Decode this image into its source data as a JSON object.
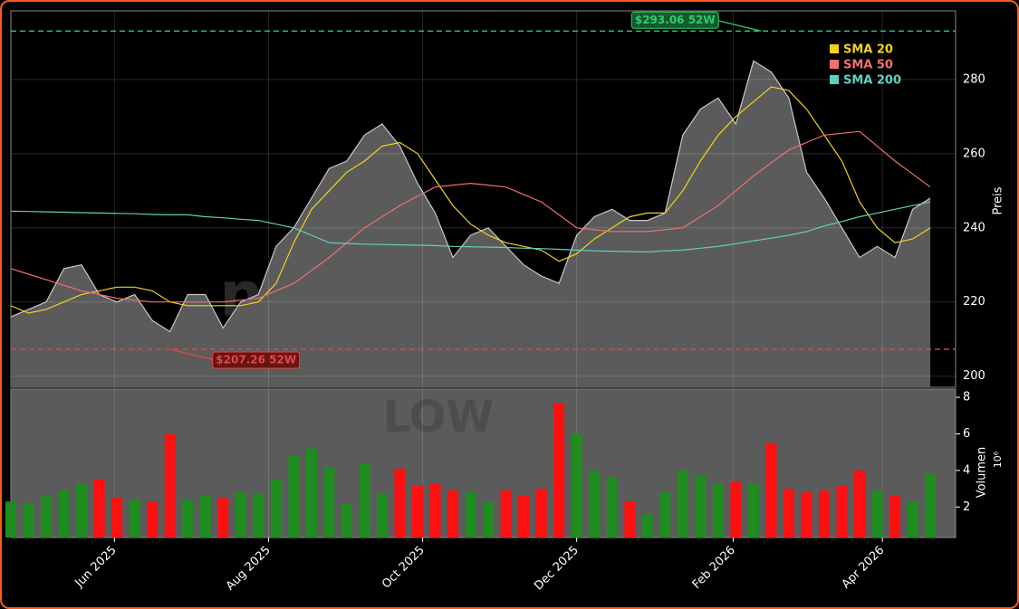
{
  "chart_data": [
    {
      "type": "line",
      "symbol": "LOW",
      "watermark": "newsroom.com",
      "ylabel": "Preis",
      "x": [
        "2025-04-21",
        "2025-04-28",
        "2025-05-05",
        "2025-05-12",
        "2025-05-19",
        "2025-05-26",
        "2025-06-02",
        "2025-06-09",
        "2025-06-16",
        "2025-06-23",
        "2025-06-30",
        "2025-07-07",
        "2025-07-14",
        "2025-07-21",
        "2025-07-28",
        "2025-08-04",
        "2025-08-11",
        "2025-08-18",
        "2025-08-25",
        "2025-09-01",
        "2025-09-08",
        "2025-09-15",
        "2025-09-22",
        "2025-09-29",
        "2025-10-06",
        "2025-10-13",
        "2025-10-20",
        "2025-10-27",
        "2025-11-03",
        "2025-11-10",
        "2025-11-17",
        "2025-11-24",
        "2025-12-01",
        "2025-12-08",
        "2025-12-15",
        "2025-12-22",
        "2025-12-29",
        "2026-01-05",
        "2026-01-12",
        "2026-01-19",
        "2026-01-26",
        "2026-02-02",
        "2026-02-09",
        "2026-02-16",
        "2026-02-23",
        "2026-03-02",
        "2026-03-09",
        "2026-03-16",
        "2026-03-23",
        "2026-03-30",
        "2026-04-06",
        "2026-04-13",
        "2026-04-20"
      ],
      "price": {
        "color": "#5b5b5b",
        "line_color": "#c8c8c8",
        "values": [
          216,
          218,
          220,
          229,
          230,
          222,
          220,
          222,
          215,
          212,
          222,
          222,
          213,
          220,
          222,
          235,
          240,
          248,
          256,
          258,
          265,
          268,
          262,
          252,
          244,
          232,
          238,
          240,
          235,
          230,
          227,
          225,
          238,
          243,
          245,
          242,
          242,
          244,
          265,
          272,
          275,
          268,
          285,
          282,
          275,
          255,
          248,
          240,
          232,
          235,
          232,
          245,
          248
        ]
      },
      "series": [
        {
          "name": "SMA 20",
          "color": "#f2d31b",
          "values": [
            219,
            217,
            218,
            220,
            222,
            223,
            224,
            224,
            223,
            220,
            219,
            219,
            219,
            219,
            220,
            225,
            236,
            245,
            250,
            255,
            258,
            262,
            263,
            260,
            253,
            246,
            241,
            238,
            236,
            235,
            234,
            231,
            233,
            237,
            240,
            243,
            244,
            244,
            250,
            258,
            265,
            270,
            274,
            278,
            277,
            272,
            265,
            258,
            247,
            240,
            236,
            237,
            240
          ]
        },
        {
          "name": "SMA 50",
          "color": "#f07070",
          "values": [
            229,
            227.5,
            226,
            224.5,
            223,
            222,
            221,
            220.5,
            220,
            220,
            220,
            220,
            220,
            220.5,
            221,
            223,
            225,
            228.5,
            232,
            236,
            240,
            243,
            246,
            248.5,
            251,
            251.5,
            252,
            251.5,
            251,
            249,
            247,
            243.5,
            240,
            239.5,
            239,
            239,
            239,
            239.5,
            240,
            243,
            246,
            250,
            254,
            257.5,
            261,
            263,
            265,
            265.5,
            266,
            262,
            258,
            254.5,
            251
          ]
        },
        {
          "name": "SMA 200",
          "color": "#5fd0c0",
          "values": [
            244.5,
            244.4,
            244.3,
            244.2,
            244.1,
            244,
            243.9,
            243.8,
            243.6,
            243.5,
            243.5,
            243,
            242.7,
            242.3,
            242,
            241,
            240,
            238,
            236,
            235.8,
            235.6,
            235.5,
            235.4,
            235.3,
            235.2,
            235,
            234.9,
            234.8,
            234.7,
            234.5,
            234.4,
            234.2,
            234,
            233.8,
            233.7,
            233.6,
            233.5,
            233.8,
            234,
            234.5,
            235,
            235.7,
            236.5,
            237.2,
            238,
            239,
            240.5,
            241.7,
            243,
            244,
            245,
            246,
            247
          ]
        }
      ],
      "high": {
        "value": 293.06,
        "label": "$293.06 52W",
        "date": "2026-02-12",
        "color": "#2ecc71"
      },
      "low": {
        "value": 207.26,
        "label": "$207.26 52W",
        "date": "2025-06-23",
        "color": "#e04848"
      },
      "xlim": [
        "2025-04-21",
        "2026-04-30"
      ],
      "ylim": [
        197,
        298.5
      ],
      "yticks": [
        200,
        220,
        240,
        260,
        280
      ],
      "grid": true
    },
    {
      "type": "bar",
      "ylabel": "Volumen",
      "offset_label": "10⁶",
      "up_color": "#1e8c1e",
      "down_color": "#ff1010",
      "values": [
        2.3,
        2.2,
        2.6,
        2.9,
        3.3,
        3.5,
        2.5,
        2.4,
        2.3,
        6.0,
        2.4,
        2.6,
        2.5,
        2.8,
        2.7,
        3.5,
        4.8,
        5.2,
        4.2,
        2.2,
        4.4,
        2.7,
        4.1,
        3.2,
        3.3,
        2.9,
        2.8,
        2.3,
        2.9,
        2.6,
        3.0,
        7.7,
        6.0,
        4.0,
        3.6,
        2.3,
        1.6,
        2.8,
        4.0,
        3.7,
        3.3,
        3.4,
        3.3,
        5.5,
        3.0,
        2.8,
        2.9,
        3.2,
        4.0,
        2.9,
        2.6,
        2.3,
        3.8
      ],
      "ylim": [
        0.33,
        8.45
      ],
      "yticks": [
        2,
        4,
        6,
        8
      ],
      "xticks": [
        {
          "value": "2025-06-01",
          "label": "Jun 2025"
        },
        {
          "value": "2025-08-01",
          "label": "Aug 2025"
        },
        {
          "value": "2025-10-01",
          "label": "Oct 2025"
        },
        {
          "value": "2025-12-01",
          "label": "Dec 2025"
        },
        {
          "value": "2026-02-01",
          "label": "Feb 2026"
        },
        {
          "value": "2026-04-01",
          "label": "Apr 2026"
        }
      ],
      "grid": true
    }
  ]
}
